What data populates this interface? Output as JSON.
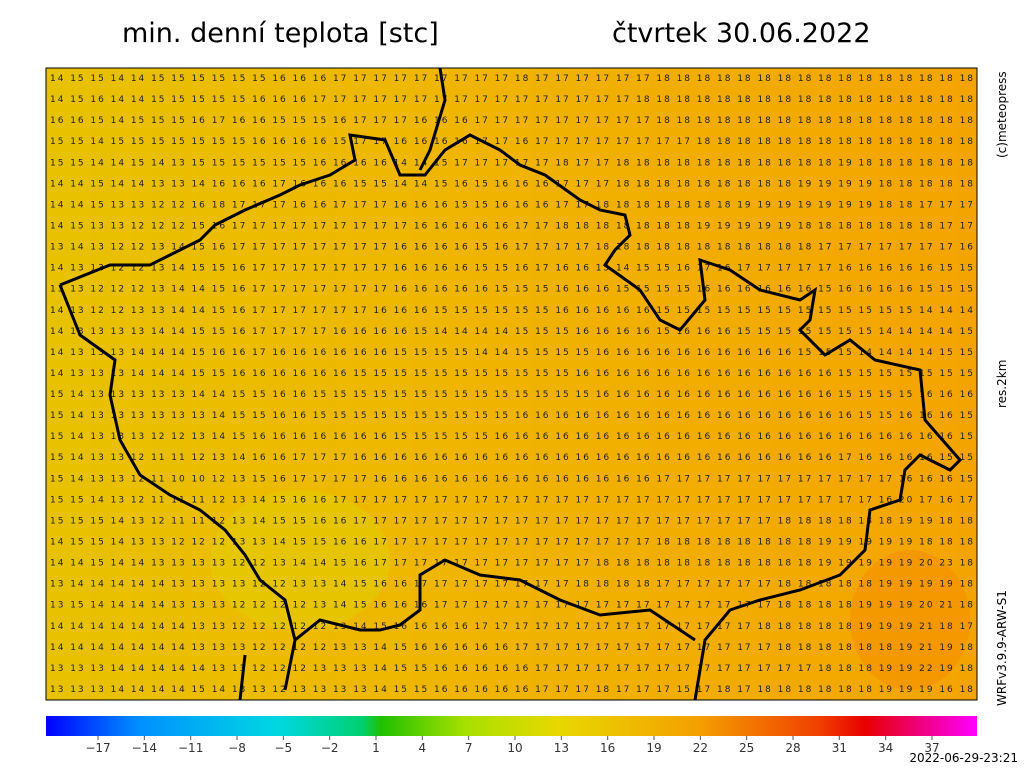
{
  "header": {
    "title": "min. denní teplota [stc]",
    "date": "čtvrtek 30.06.2022"
  },
  "side": {
    "copyright": "(c)meteopress",
    "resolution": "res.2km",
    "model": "WRFv3.9.9-ARW-S1"
  },
  "footer": {
    "timestamp": "2022-06-29-23:21"
  },
  "colorbar": {
    "labels": [
      "−17",
      "−14",
      "−11",
      "−8",
      "−5",
      "−2",
      "1",
      "4",
      "7",
      "10",
      "13",
      "16",
      "19",
      "22",
      "25",
      "28",
      "31",
      "34",
      "37"
    ]
  },
  "grid": {
    "rows": [
      "14 15 15 14 14 15 15 15 15 15 15 16 16 16 17 17 17 17 17 17 17 17 17 18 17 17 17 17 17 17 18 18 18 18 18 18 18 18 18 18 18 18 18 18 18 18",
      "14 15 16 14 14 15 15 15 15 15 16 16 16 17 17 17 17 17 17 17 17 17 17 17 17 17 17 17 17 18 18 18 18 18 18 18 18 18 18 18 18 18 18 18 18 18",
      "16 16 15 14 15 15 15 16 17 16 16 15 15 15 16 17 17 17 16 16 16 17 17 17 17 17 17 17 17 17 18 18 18 18 18 18 18 18 18 18 18 18 18 18 18 18",
      "15 15 14 15 15 15 15 15 15 15 16 16 16 16 15 17 17 16 16 16 16 17 17 16 17 17 17 17 17 17 17 17 18 18 18 18 18 18 18 18 18 18 18 18 18 18",
      "15 15 14 14 15 14 13 15 15 15 15 15 15 16 16 16 16 14 14 15 17 17 17 17 17 18 17 17 18 18 18 18 18 18 18 18 18 18 18 19 18 18 18 18 18 18",
      "14 14 15 14 14 13 13 14 16 16 16 17 16 16 16 15 15 14 14 15 16 15 16 16 16 17 17 17 18 18 18 18 18 18 18 18 18 19 19 19 19 18 18 18 18 18",
      "14 14 15 13 13 12 12 16 18 17 17 17 16 16 17 17 17 16 16 16 15 15 16 16 16 17 17 18 18 18 18 18 18 18 19 19 19 19 19 19 19 18 18 17 17 17",
      "14 15 13 13 12 12 12 15 16 17 17 17 17 17 17 17 17 17 16 16 16 16 16 17 17 18 18 18 18 18 18 18 19 19 19 19 19 18 18 18 18 18 18 18 17 17",
      "13 14 13 12 12 13 14 15 16 17 17 17 17 17 17 17 17 16 16 16 16 15 16 17 17 17 17 18 18 18 18 18 18 18 18 18 18 18 17 17 17 17 17 17 17 16",
      "14 13 13 12 12 13 14 15 15 16 17 17 17 17 17 17 17 16 16 16 16 15 15 16 17 16 16 15 14 15 15 16 17 16 17 17 17 17 17 16 16 16 16 16 15 15",
      "13 13 12 12 12 13 14 14 15 16 17 17 17 17 17 17 17 16 16 16 16 16 15 15 15 16 16 16 15 15 15 15 16 16 16 16 16 16 15 16 16 16 16 15 15 15",
      "14 13 12 12 13 13 14 14 15 16 17 17 17 17 17 17 16 16 16 15 15 15 15 15 15 16 16 16 16 16 15 15 15 15 15 15 15 15 15 15 15 15 15 14 14 14",
      "14 13 13 13 13 14 14 15 15 16 17 17 17 17 16 16 16 16 15 14 14 14 14 15 15 15 16 16 16 16 15 16 16 16 15 15 15 15 15 15 15 14 14 14 14 15",
      "14 13 13 13 14 14 14 15 16 16 17 16 16 16 16 16 16 15 15 15 15 14 14 15 15 15 15 16 16 16 16 16 16 16 16 16 16 15 15 15 14 14 14 14 15 15",
      "14 13 13 13 14 14 14 15 15 16 16 16 16 16 16 15 15 15 15 15 15 15 15 15 15 15 16 16 16 16 16 16 16 16 16 16 16 16 16 15 15 15 15 15 15 15",
      "15 14 13 13 13 13 13 14 14 15 15 16 16 15 15 15 15 15 15 15 15 15 15 15 15 15 15 16 16 16 16 16 16 16 16 16 16 16 16 15 15 15 15 16 16 16",
      "15 14 13 13 13 13 13 13 14 15 15 16 16 15 15 15 15 15 15 15 15 15 15 16 16 16 16 16 16 16 16 16 16 16 16 16 16 16 16 16 15 15 16 16 16 15",
      "15 14 13 13 13 12 12 13 14 15 16 16 16 16 16 16 16 15 15 15 15 15 16 16 16 16 16 16 16 16 16 16 16 16 16 16 16 16 16 16 16 16 16 16 16 15",
      "15 14 13 13 12 11 11 12 13 14 16 16 17 17 17 16 16 16 16 16 16 16 16 16 16 16 16 16 16 16 16 16 16 16 16 16 16 16 16 17 16 16 16 16 15 15",
      "15 14 13 13 12 11 10 10 12 13 15 16 17 17 17 17 16 16 16 16 16 16 16 16 16 16 16 16 16 16 17 17 17 17 17 17 17 17 17 17 17 17 16 16 16 15",
      "15 15 14 13 12 11 11 11 12 13 14 15 16 16 17 17 17 17 17 17 17 17 17 17 17 17 17 17 17 17 17 17 17 17 17 17 17 17 17 17 17 16 20 17 16 17",
      "15 15 15 14 13 12 11 11 12 13 14 15 15 16 16 17 17 17 17 17 17 17 17 17 17 17 17 17 17 17 17 17 17 17 17 17 18 18 18 18 18 18 19 19 18 18",
      "14 15 15 14 13 13 12 12 12 13 13 14 15 15 16 16 17 17 17 17 17 17 17 17 17 17 17 17 17 17 18 18 18 18 18 18 18 18 19 19 19 19 19 18 18 18",
      "14 14 15 14 14 13 13 13 13 12 12 13 14 14 15 16 17 17 17 17 17 17 17 17 17 17 17 18 18 18 18 18 18 18 18 18 18 18 19 19 19 19 19 20 23 18",
      "13 14 14 14 14 14 13 13 13 13 12 12 13 13 14 15 16 16 17 17 17 17 17 17 17 17 18 18 18 18 17 17 17 17 17 17 18 18 18 18 18 19 19 19 19 18",
      "13 15 14 14 14 14 13 13 13 12 12 12 12 13 14 15 16 16 16 17 17 17 17 17 17 17 17 17 17 17 17 17 17 17 17 17 18 18 18 18 19 19 19 20 21 18",
      "14 14 14 14 14 14 14 13 13 12 12 12 12 12 13 14 15 16 16 16 16 17 17 17 17 17 17 17 17 17 17 17 17 17 17 18 18 18 18 18 19 19 19 21 18 17",
      "14 14 14 14 14 14 14 13 13 13 12 12 12 12 13 13 14 15 16 16 16 16 16 17 17 17 17 17 17 17 17 17 17 17 17 17 18 18 18 18 18 18 19 21 19 18",
      "13 13 13 14 14 14 14 14 13 13 12 12 12 13 13 13 14 15 15 16 16 16 16 16 17 17 17 17 17 17 17 17 17 17 17 17 17 17 18 18 18 19 19 22 19 18",
      "13 13 13 14 14 14 14 15 14 13 13 12 13 13 13 13 14 15 15 16 16 16 16 16 17 17 17 18 17 17 17 15 17 18 17 18 18 18 18 18 18 19 19 19 16 18"
    ]
  }
}
